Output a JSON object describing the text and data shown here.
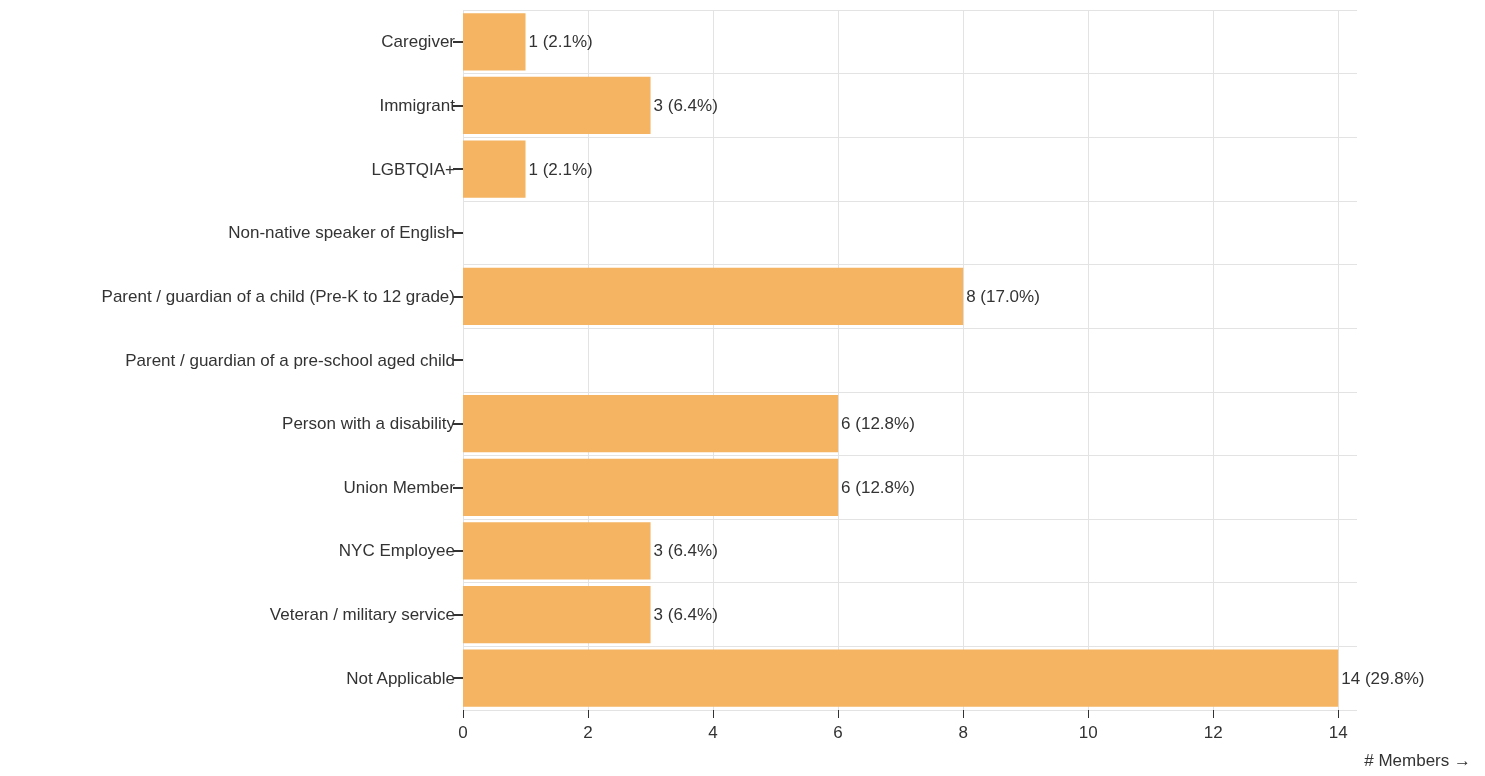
{
  "chart_data": {
    "type": "bar",
    "orientation": "horizontal",
    "xlabel": "# Members →",
    "categories": [
      "Caregiver",
      "Immigrant",
      "LGBTQIA+",
      "Non-native speaker of English",
      "Parent / guardian of a child (Pre-K to 12 grade)",
      "Parent / guardian of a pre-school aged child",
      "Person with a disability",
      "Union Member",
      "NYC Employee",
      "Veteran / military service",
      "Not Applicable"
    ],
    "values": [
      1,
      3,
      1,
      0,
      8,
      0,
      6,
      6,
      3,
      3,
      14
    ],
    "value_labels": [
      "1 (2.1%)",
      "3 (6.4%)",
      "1 (2.1%)",
      null,
      "8 (17.0%)",
      null,
      "6 (12.8%)",
      "6 (12.8%)",
      "3 (6.4%)",
      "3 (6.4%)",
      "14 (29.8%)"
    ],
    "color": "#f4b462",
    "xlim": [
      0,
      14.3
    ],
    "xticks": [
      0,
      2,
      4,
      6,
      8,
      10,
      12,
      14
    ],
    "grid": true
  }
}
